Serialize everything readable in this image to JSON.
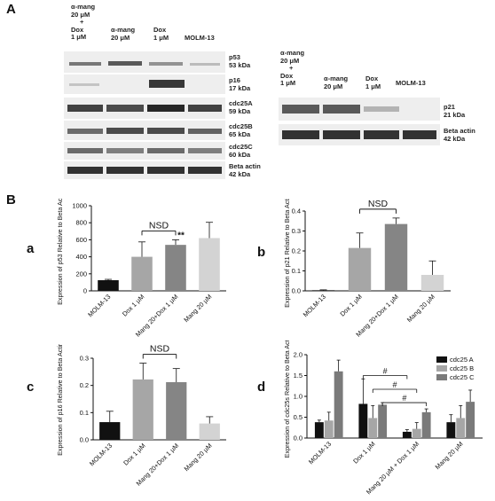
{
  "panel_labels": {
    "A": "A",
    "B": "B"
  },
  "sub_labels": {
    "a": "a",
    "b": "b",
    "c": "c",
    "d": "d"
  },
  "blot_left": {
    "lanes": [
      [
        "α-mang",
        "20 μM",
        "+",
        "Dox",
        "1 μM"
      ],
      [
        "α-mang",
        "20 μM"
      ],
      [
        "Dox",
        "1 μM"
      ],
      [
        "MOLM-13"
      ]
    ],
    "bands": [
      {
        "name": "p53",
        "size": "53 kDa"
      },
      {
        "name": "p16",
        "size": "17 kDa"
      },
      {
        "name": "cdc25A",
        "size": "59 kDa"
      },
      {
        "name": "cdc25B",
        "size": "65 kDa"
      },
      {
        "name": "cdc25C",
        "size": "60 kDa"
      },
      {
        "name": "Beta actin",
        "size": "42 kDa"
      }
    ]
  },
  "blot_right": {
    "lanes": [
      [
        "α-mang",
        "20 μM",
        "+",
        "Dox",
        "1 μM"
      ],
      [
        "α-mang",
        "20 μM"
      ],
      [
        "Dox",
        "1 μM"
      ],
      [
        "MOLM-13"
      ]
    ],
    "bands": [
      {
        "name": "p21",
        "size": "21 kDa"
      },
      {
        "name": "Beta actin",
        "size": "42 kDa"
      }
    ]
  },
  "chart_data": [
    {
      "id": "a",
      "type": "bar",
      "ylabel": "Expression of p53 Relative to Beta Actin",
      "categories": [
        "MOLM-13",
        "Dox 1 μM",
        "Mang 20+Dox 1 μM",
        "Mang 20 μM"
      ],
      "values": [
        125,
        400,
        540,
        620
      ],
      "errors": [
        10,
        175,
        60,
        185
      ],
      "colors": [
        "#111111",
        "#a6a6a6",
        "#858585",
        "#d3d3d3"
      ],
      "ylim": [
        0,
        1000
      ],
      "yticks": [
        "0",
        "200",
        "400",
        "600",
        "800",
        "1000"
      ],
      "annotations": [
        {
          "text": "NSD",
          "between": [
            1,
            2
          ]
        },
        {
          "text": "**",
          "over": 2
        }
      ]
    },
    {
      "id": "b",
      "type": "bar",
      "ylabel": "Expression of p21 Relative to Beta Actin",
      "categories": [
        "MOLM-13",
        "Dox 1 μM",
        "Mang 20+Dox 1 μM",
        "Mang 20 μM"
      ],
      "values": [
        0.003,
        0.215,
        0.335,
        0.08
      ],
      "errors": [
        0.002,
        0.075,
        0.03,
        0.07
      ],
      "colors": [
        "#111111",
        "#a6a6a6",
        "#858585",
        "#d3d3d3"
      ],
      "ylim": [
        0,
        0.4
      ],
      "yticks": [
        "0.0",
        "0.1",
        "0.2",
        "0.3",
        "0.4"
      ],
      "annotations": [
        {
          "text": "NSD",
          "between": [
            1,
            2
          ]
        }
      ]
    },
    {
      "id": "c",
      "type": "bar",
      "ylabel": "Expression of p16 Relative to Beta Actin",
      "categories": [
        "MOLM-13",
        "Dox 1 μM",
        "Mang 20+Dox 1 μM",
        "Mang 20 μM"
      ],
      "values": [
        0.065,
        0.222,
        0.212,
        0.06
      ],
      "errors": [
        0.04,
        0.06,
        0.05,
        0.025
      ],
      "colors": [
        "#111111",
        "#a6a6a6",
        "#858585",
        "#d3d3d3"
      ],
      "ylim": [
        0,
        0.3
      ],
      "yticks": [
        "0.0",
        "0.1",
        "0.2",
        "0.3"
      ],
      "annotations": [
        {
          "text": "NSD",
          "between": [
            1,
            2
          ]
        }
      ]
    },
    {
      "id": "d",
      "type": "bar",
      "ylabel": "Expression of cdc25s Relative to Beta Actin",
      "categories": [
        "MOLM-13",
        "Dox 1 μM",
        "Mang 20 μM + Dox 1 μM",
        "Mang 20 μM"
      ],
      "series": [
        {
          "name": "cdc25 A",
          "values": [
            0.38,
            0.82,
            0.15,
            0.38
          ],
          "errors": [
            0.05,
            0.6,
            0.05,
            0.18
          ],
          "color": "#111111"
        },
        {
          "name": "cdc25 B",
          "values": [
            0.42,
            0.48,
            0.22,
            0.48
          ],
          "errors": [
            0.2,
            0.3,
            0.15,
            0.3
          ],
          "color": "#a6a6a6"
        },
        {
          "name": "cdc25 C",
          "values": [
            1.6,
            0.8,
            0.62,
            0.87
          ],
          "errors": [
            0.27,
            0.05,
            0.08,
            0.28
          ],
          "color": "#7a7a7a"
        }
      ],
      "ylim": [
        0,
        2.0
      ],
      "yticks": [
        "0.0",
        "0.5",
        "1.0",
        "1.5",
        "2.0"
      ],
      "legend": "top-right",
      "annotations": [
        {
          "text": "#"
        },
        {
          "text": "#"
        },
        {
          "text": "#"
        }
      ]
    }
  ]
}
